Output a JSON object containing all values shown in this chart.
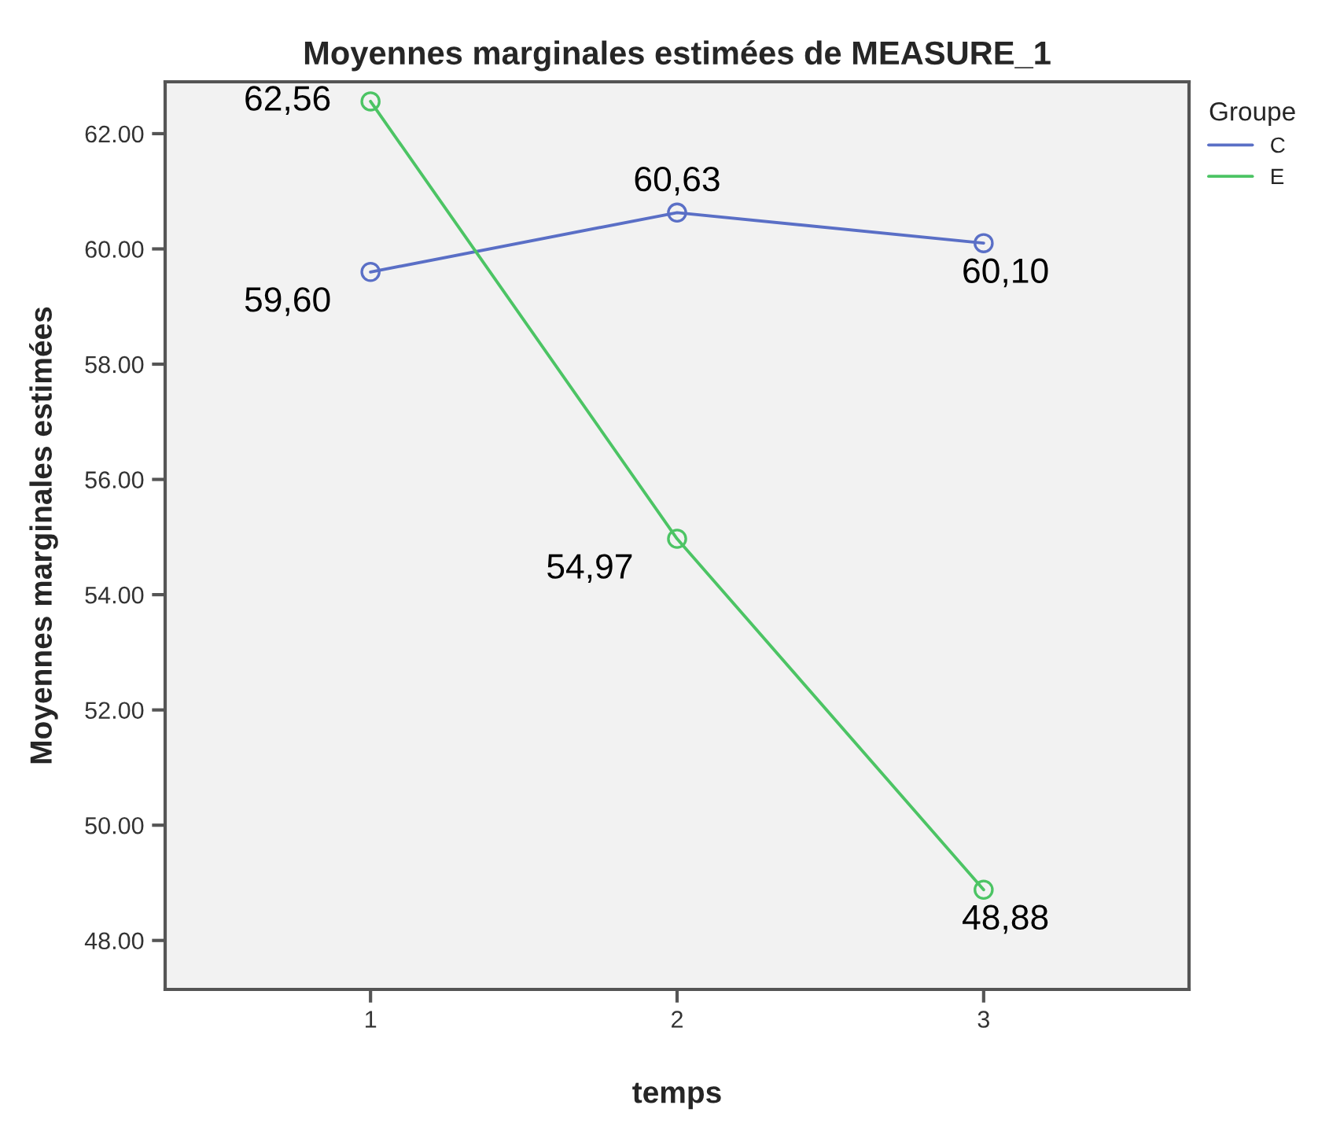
{
  "chart_data": {
    "type": "line",
    "title": "Moyennes marginales estimées de MEASURE_1",
    "xlabel": "temps",
    "ylabel": "Moyennes marginales estimées",
    "legend_title": "Groupe",
    "x": [
      1,
      2,
      3
    ],
    "xlim": [
      0.33,
      3.67
    ],
    "xticks": [
      1,
      2,
      3
    ],
    "ylim": [
      47.15,
      62.9
    ],
    "yticks": [
      {
        "value": 48,
        "label": "48.00"
      },
      {
        "value": 50,
        "label": "50.00"
      },
      {
        "value": 52,
        "label": "52.00"
      },
      {
        "value": 54,
        "label": "54.00"
      },
      {
        "value": 56,
        "label": "56.00"
      },
      {
        "value": 58,
        "label": "58.00"
      },
      {
        "value": 60,
        "label": "60.00"
      },
      {
        "value": 62,
        "label": "62.00"
      }
    ],
    "series": [
      {
        "name": "C",
        "color": "#5a6fc6",
        "values": [
          59.6,
          60.63,
          60.1
        ],
        "value_labels": [
          "59,60",
          "60,63",
          "60,10"
        ]
      },
      {
        "name": "E",
        "color": "#4cc464",
        "values": [
          62.56,
          54.97,
          48.88
        ],
        "value_labels": [
          "62,56",
          "54,97",
          "48,88"
        ]
      }
    ],
    "marker": "circle",
    "line_style": "solid",
    "grid": false,
    "legend": "top right"
  }
}
